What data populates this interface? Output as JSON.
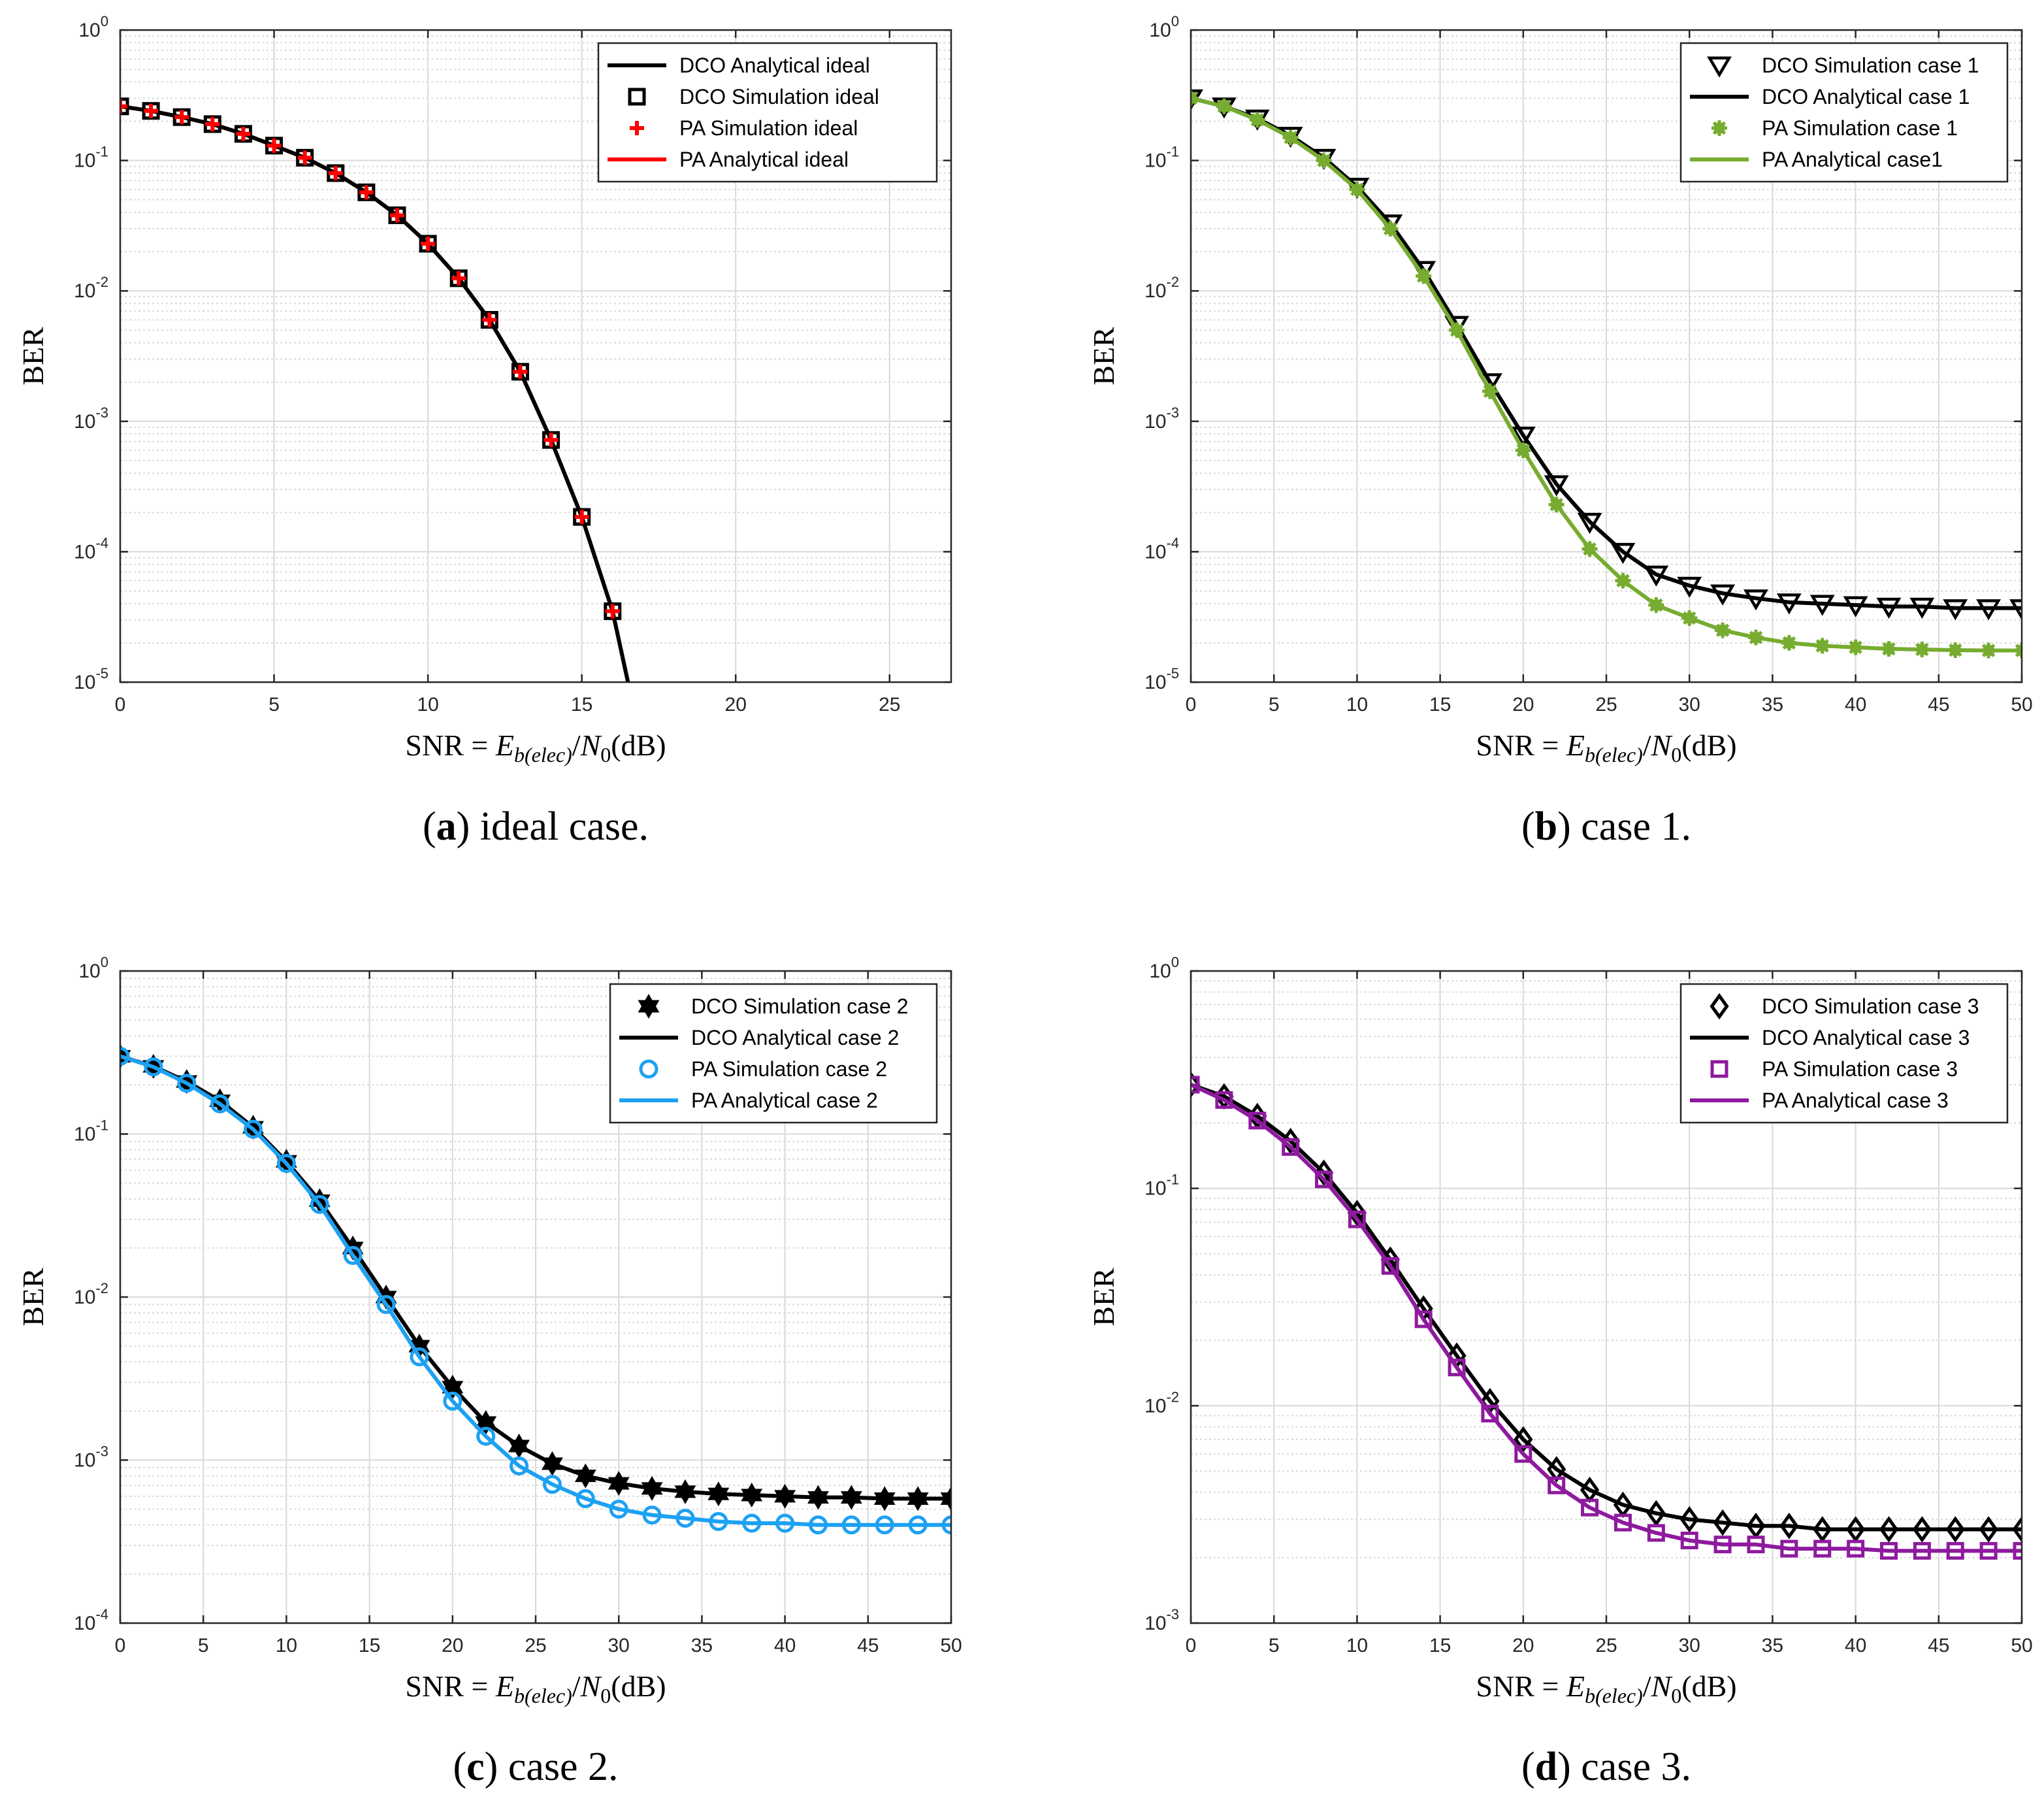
{
  "figure": {
    "background": "#ffffff",
    "grid_color": "#d9d9d9",
    "frame_color": "#262626"
  },
  "chart_data": [
    {
      "id": "a",
      "type": "line",
      "yscale": "log",
      "xlim": [
        0,
        27
      ],
      "ylim": [
        1e-05,
        1
      ],
      "xticks": [
        0,
        5,
        10,
        15,
        20,
        25
      ],
      "ylabel": "BER",
      "xlabel": {
        "prefix": "SNR = ",
        "E": "E",
        "sub": "b(elec)",
        "slash": "/",
        "N": "N",
        "nsub": "0",
        "unit": "(dB)"
      },
      "caption": {
        "letter": "a",
        "text": "ideal case."
      },
      "grid": true,
      "legend_position": "top-right",
      "series": [
        {
          "name": "DCO Analytical ideal",
          "kind": "line",
          "color": "#000000",
          "x": [
            0,
            1,
            2,
            3,
            4,
            5,
            6,
            7,
            8,
            9,
            10,
            11,
            12,
            13,
            14,
            15,
            16,
            16.5
          ],
          "y": [
            0.26,
            0.24,
            0.215,
            0.19,
            0.16,
            0.13,
            0.105,
            0.08,
            0.057,
            0.038,
            0.023,
            0.0125,
            0.006,
            0.0024,
            0.00072,
            0.000185,
            3.5e-05,
            1e-05
          ]
        },
        {
          "name": "DCO Simulation ideal",
          "kind": "marker",
          "marker": "square",
          "color": "#000000",
          "x": [
            0,
            1,
            2,
            3,
            4,
            5,
            6,
            7,
            8,
            9,
            10,
            11,
            12,
            13,
            14,
            15,
            16
          ],
          "y": [
            0.26,
            0.24,
            0.215,
            0.19,
            0.16,
            0.13,
            0.105,
            0.08,
            0.057,
            0.038,
            0.023,
            0.0125,
            0.006,
            0.0024,
            0.00072,
            0.000185,
            3.5e-05
          ]
        },
        {
          "name": "PA Simulation ideal",
          "kind": "marker",
          "marker": "plus",
          "color": "#ff0000",
          "x": [
            0,
            1,
            2,
            3,
            4,
            5,
            6,
            7,
            8,
            9,
            10,
            11,
            12,
            13,
            14,
            15,
            16
          ],
          "y": [
            0.26,
            0.24,
            0.215,
            0.19,
            0.16,
            0.13,
            0.105,
            0.08,
            0.057,
            0.038,
            0.023,
            0.0125,
            0.006,
            0.0024,
            0.00072,
            0.000185,
            3.5e-05
          ]
        },
        {
          "name": "PA Analytical ideal",
          "kind": "line",
          "color": "#ff0000",
          "x": [
            0,
            1,
            2,
            3,
            4,
            5,
            6,
            7,
            8,
            9,
            10,
            11,
            12,
            13,
            14,
            15,
            16,
            16.5
          ],
          "y": [
            0.26,
            0.24,
            0.215,
            0.19,
            0.16,
            0.13,
            0.105,
            0.08,
            0.057,
            0.038,
            0.023,
            0.0125,
            0.006,
            0.0024,
            0.00072,
            0.000185,
            3.5e-05,
            1e-05
          ]
        }
      ],
      "draw_order": [
        3,
        0,
        1,
        2
      ]
    },
    {
      "id": "b",
      "type": "line",
      "yscale": "log",
      "xlim": [
        0,
        50
      ],
      "ylim": [
        1e-05,
        1
      ],
      "xticks": [
        0,
        5,
        10,
        15,
        20,
        25,
        30,
        35,
        40,
        45,
        50
      ],
      "ylabel": "BER",
      "xlabel": {
        "prefix": "SNR = ",
        "E": "E",
        "sub": "b(elec)",
        "slash": "/",
        "N": "N",
        "nsub": "0",
        "unit": "(dB)"
      },
      "caption": {
        "letter": "b",
        "text": "case 1."
      },
      "grid": true,
      "legend_position": "top-right",
      "series": [
        {
          "name": "DCO Simulation case 1",
          "kind": "marker",
          "marker": "triangle-down",
          "color": "#000000",
          "x": [
            0,
            2,
            4,
            6,
            8,
            10,
            12,
            14,
            16,
            18,
            20,
            22,
            24,
            26,
            28,
            30,
            32,
            34,
            36,
            38,
            40,
            42,
            44,
            46,
            48,
            50
          ],
          "y": [
            0.3,
            0.26,
            0.21,
            0.155,
            0.105,
            0.063,
            0.033,
            0.0145,
            0.0055,
            0.002,
            0.00078,
            0.00033,
            0.00017,
            0.0001,
            6.7e-05,
            5.5e-05,
            4.8e-05,
            4.4e-05,
            4.1e-05,
            4e-05,
            3.9e-05,
            3.8e-05,
            3.8e-05,
            3.7e-05,
            3.7e-05,
            3.7e-05
          ]
        },
        {
          "name": "DCO Analytical case 1",
          "kind": "line",
          "color": "#000000",
          "x": [
            0,
            2,
            4,
            6,
            8,
            10,
            12,
            14,
            16,
            18,
            20,
            22,
            24,
            26,
            28,
            30,
            32,
            34,
            36,
            38,
            40,
            42,
            44,
            46,
            48,
            50
          ],
          "y": [
            0.3,
            0.26,
            0.21,
            0.155,
            0.105,
            0.063,
            0.033,
            0.0145,
            0.0055,
            0.002,
            0.00078,
            0.00033,
            0.00017,
            0.0001,
            6.7e-05,
            5.5e-05,
            4.8e-05,
            4.4e-05,
            4.1e-05,
            4e-05,
            3.9e-05,
            3.8e-05,
            3.8e-05,
            3.7e-05,
            3.7e-05,
            3.7e-05
          ]
        },
        {
          "name": "PA Simulation case 1",
          "kind": "marker",
          "marker": "asterisk-filled",
          "color": "#77ac30",
          "x": [
            0,
            2,
            4,
            6,
            8,
            10,
            12,
            14,
            16,
            18,
            20,
            22,
            24,
            26,
            28,
            30,
            32,
            34,
            36,
            38,
            40,
            42,
            44,
            46,
            48,
            50
          ],
          "y": [
            0.3,
            0.26,
            0.205,
            0.15,
            0.1,
            0.06,
            0.03,
            0.013,
            0.005,
            0.0017,
            0.0006,
            0.00023,
            0.000105,
            6e-05,
            3.9e-05,
            3.1e-05,
            2.5e-05,
            2.2e-05,
            2e-05,
            1.9e-05,
            1.85e-05,
            1.8e-05,
            1.78e-05,
            1.76e-05,
            1.75e-05,
            1.75e-05
          ]
        },
        {
          "name": "PA Analytical case1",
          "kind": "line",
          "color": "#77ac30",
          "x": [
            0,
            2,
            4,
            6,
            8,
            10,
            12,
            14,
            16,
            18,
            20,
            22,
            24,
            26,
            28,
            30,
            32,
            34,
            36,
            38,
            40,
            42,
            44,
            46,
            48,
            50
          ],
          "y": [
            0.3,
            0.26,
            0.205,
            0.15,
            0.1,
            0.06,
            0.03,
            0.013,
            0.005,
            0.0017,
            0.0006,
            0.00023,
            0.000105,
            6e-05,
            3.9e-05,
            3.1e-05,
            2.5e-05,
            2.2e-05,
            2e-05,
            1.9e-05,
            1.85e-05,
            1.8e-05,
            1.78e-05,
            1.76e-05,
            1.75e-05,
            1.75e-05
          ]
        }
      ],
      "draw_order": [
        1,
        0,
        3,
        2
      ]
    },
    {
      "id": "c",
      "type": "line",
      "yscale": "log",
      "xlim": [
        0,
        50
      ],
      "ylim": [
        0.0001,
        1
      ],
      "xticks": [
        0,
        5,
        10,
        15,
        20,
        25,
        30,
        35,
        40,
        45,
        50
      ],
      "ylabel": "BER",
      "xlabel": {
        "prefix": "SNR = ",
        "E": "E",
        "sub": "b(elec)",
        "slash": "/",
        "N": "N",
        "nsub": "0",
        "unit": "(dB)"
      },
      "caption": {
        "letter": "c",
        "text": "case 2."
      },
      "grid": true,
      "legend_position": "top-right",
      "series": [
        {
          "name": "DCO Simulation case 2",
          "kind": "marker",
          "marker": "hexagram",
          "color": "#000000",
          "x": [
            0,
            2,
            4,
            6,
            8,
            10,
            12,
            14,
            16,
            18,
            20,
            22,
            24,
            26,
            28,
            30,
            32,
            34,
            36,
            38,
            40,
            42,
            44,
            46,
            48,
            50
          ],
          "y": [
            0.3,
            0.26,
            0.21,
            0.16,
            0.11,
            0.068,
            0.039,
            0.02,
            0.01,
            0.005,
            0.0028,
            0.0017,
            0.00122,
            0.00095,
            0.0008,
            0.00072,
            0.00067,
            0.00064,
            0.00062,
            0.00061,
            0.0006,
            0.00059,
            0.00059,
            0.00058,
            0.00058,
            0.00058
          ]
        },
        {
          "name": "DCO Analytical case 2",
          "kind": "line",
          "color": "#000000",
          "x": [
            0,
            2,
            4,
            6,
            8,
            10,
            12,
            14,
            16,
            18,
            20,
            22,
            24,
            26,
            28,
            30,
            32,
            34,
            36,
            38,
            40,
            42,
            44,
            46,
            48,
            50
          ],
          "y": [
            0.3,
            0.26,
            0.21,
            0.16,
            0.11,
            0.068,
            0.039,
            0.02,
            0.01,
            0.005,
            0.0028,
            0.0017,
            0.00122,
            0.00095,
            0.0008,
            0.00072,
            0.00067,
            0.00064,
            0.00062,
            0.00061,
            0.0006,
            0.00059,
            0.00059,
            0.00058,
            0.00058,
            0.00058
          ]
        },
        {
          "name": "PA Simulation case 2",
          "kind": "marker",
          "marker": "circle",
          "color": "#1da1f2",
          "x": [
            0,
            2,
            4,
            6,
            8,
            10,
            12,
            14,
            16,
            18,
            20,
            22,
            24,
            26,
            28,
            30,
            32,
            34,
            36,
            38,
            40,
            42,
            44,
            46,
            48,
            50
          ],
          "y": [
            0.3,
            0.258,
            0.205,
            0.153,
            0.107,
            0.066,
            0.037,
            0.018,
            0.009,
            0.0043,
            0.0023,
            0.0014,
            0.00092,
            0.00071,
            0.00058,
            0.0005,
            0.00046,
            0.00044,
            0.00042,
            0.00041,
            0.00041,
            0.0004,
            0.0004,
            0.0004,
            0.0004,
            0.0004
          ]
        },
        {
          "name": "PA Analytical case 2",
          "kind": "line",
          "color": "#1da1f2",
          "x": [
            0,
            2,
            4,
            6,
            8,
            10,
            12,
            14,
            16,
            18,
            20,
            22,
            24,
            26,
            28,
            30,
            32,
            34,
            36,
            38,
            40,
            42,
            44,
            46,
            48,
            50
          ],
          "y": [
            0.3,
            0.258,
            0.205,
            0.153,
            0.107,
            0.066,
            0.037,
            0.018,
            0.009,
            0.0043,
            0.0023,
            0.0014,
            0.00092,
            0.00071,
            0.00058,
            0.0005,
            0.00046,
            0.00044,
            0.00042,
            0.00041,
            0.00041,
            0.0004,
            0.0004,
            0.0004,
            0.0004,
            0.0004
          ]
        }
      ],
      "draw_order": [
        1,
        0,
        3,
        2
      ]
    },
    {
      "id": "d",
      "type": "line",
      "yscale": "log",
      "xlim": [
        0,
        50
      ],
      "ylim": [
        0.001,
        1
      ],
      "xticks": [
        0,
        5,
        10,
        15,
        20,
        25,
        30,
        35,
        40,
        45,
        50
      ],
      "ylabel": "BER",
      "xlabel": {
        "prefix": "SNR = ",
        "E": "E",
        "sub": "b(elec)",
        "slash": "/",
        "N": "N",
        "nsub": "0",
        "unit": "(dB)"
      },
      "caption": {
        "letter": "d",
        "text": "case 3."
      },
      "grid": true,
      "legend_position": "top-right",
      "series": [
        {
          "name": "DCO Simulation case 3",
          "kind": "marker",
          "marker": "diamond",
          "color": "#000000",
          "x": [
            0,
            2,
            4,
            6,
            8,
            10,
            12,
            14,
            16,
            18,
            20,
            22,
            24,
            26,
            28,
            30,
            32,
            34,
            36,
            38,
            40,
            42,
            44,
            46,
            48,
            50
          ],
          "y": [
            0.3,
            0.265,
            0.215,
            0.165,
            0.118,
            0.077,
            0.047,
            0.028,
            0.017,
            0.0105,
            0.007,
            0.0051,
            0.0041,
            0.0035,
            0.0032,
            0.003,
            0.0029,
            0.0028,
            0.0028,
            0.0027,
            0.0027,
            0.0027,
            0.0027,
            0.0027,
            0.0027,
            0.0027
          ]
        },
        {
          "name": "DCO Analytical case 3",
          "kind": "line",
          "color": "#000000",
          "x": [
            0,
            2,
            4,
            6,
            8,
            10,
            12,
            14,
            16,
            18,
            20,
            22,
            24,
            26,
            28,
            30,
            32,
            34,
            36,
            38,
            40,
            42,
            44,
            46,
            48,
            50
          ],
          "y": [
            0.3,
            0.265,
            0.215,
            0.165,
            0.118,
            0.077,
            0.047,
            0.028,
            0.017,
            0.0105,
            0.007,
            0.0051,
            0.0041,
            0.0035,
            0.0032,
            0.003,
            0.0029,
            0.0028,
            0.0028,
            0.0027,
            0.0027,
            0.0027,
            0.0027,
            0.0027,
            0.0027,
            0.0027
          ]
        },
        {
          "name": "PA Simulation case 3",
          "kind": "marker",
          "marker": "square",
          "color": "#8e1a9e",
          "x": [
            0,
            2,
            4,
            6,
            8,
            10,
            12,
            14,
            16,
            18,
            20,
            22,
            24,
            26,
            28,
            30,
            32,
            34,
            36,
            38,
            40,
            42,
            44,
            46,
            48,
            50
          ],
          "y": [
            0.3,
            0.255,
            0.205,
            0.155,
            0.11,
            0.072,
            0.044,
            0.025,
            0.015,
            0.0092,
            0.006,
            0.0043,
            0.0034,
            0.0029,
            0.0026,
            0.0024,
            0.0023,
            0.0023,
            0.0022,
            0.0022,
            0.0022,
            0.00215,
            0.00215,
            0.00215,
            0.00215,
            0.00215
          ]
        },
        {
          "name": "PA Analytical case 3",
          "kind": "line",
          "color": "#8e1a9e",
          "x": [
            0,
            2,
            4,
            6,
            8,
            10,
            12,
            14,
            16,
            18,
            20,
            22,
            24,
            26,
            28,
            30,
            32,
            34,
            36,
            38,
            40,
            42,
            44,
            46,
            48,
            50
          ],
          "y": [
            0.3,
            0.255,
            0.205,
            0.155,
            0.11,
            0.072,
            0.044,
            0.025,
            0.015,
            0.0092,
            0.006,
            0.0043,
            0.0034,
            0.0029,
            0.0026,
            0.0024,
            0.0023,
            0.0023,
            0.0022,
            0.0022,
            0.0022,
            0.00215,
            0.00215,
            0.00215,
            0.00215,
            0.00215
          ]
        }
      ],
      "draw_order": [
        1,
        0,
        3,
        2
      ]
    }
  ]
}
